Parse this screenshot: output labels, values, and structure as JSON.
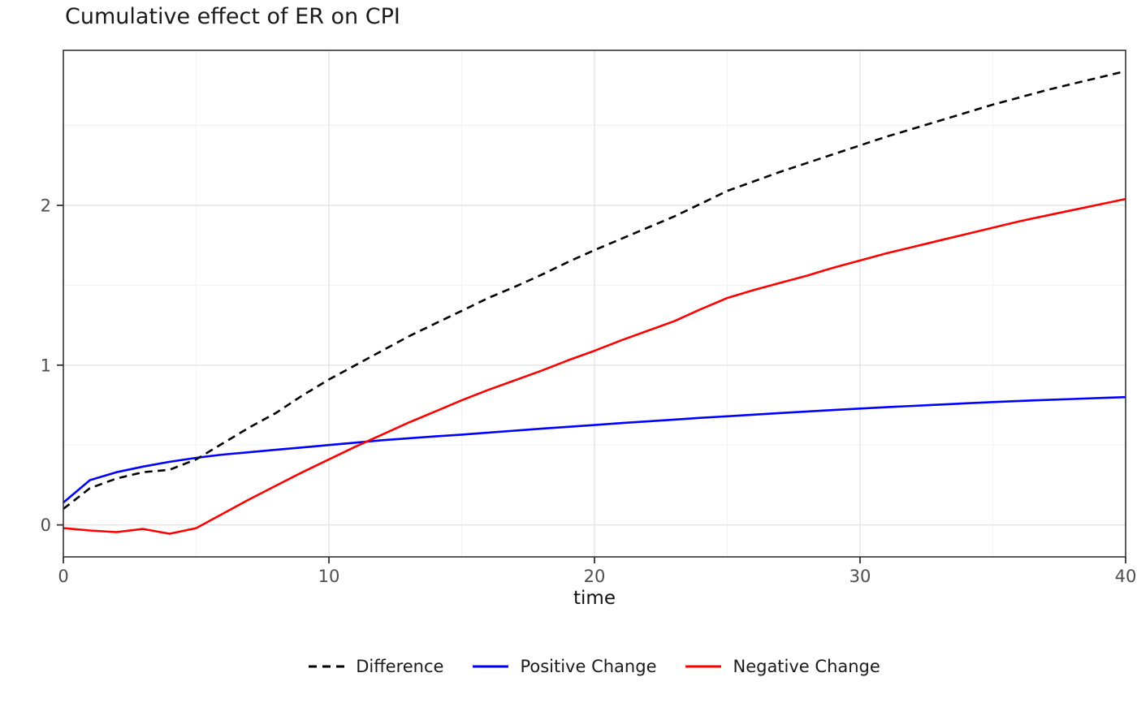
{
  "chart_data": {
    "type": "line",
    "title": "Cumulative effect of ER on CPI",
    "xlabel": "time",
    "ylabel": "",
    "xlim": [
      0,
      40
    ],
    "ylim": [
      -0.2,
      2.97
    ],
    "xticks": [
      0,
      10,
      20,
      30,
      40
    ],
    "yticks": [
      0,
      1,
      2
    ],
    "xminor": [
      5,
      15,
      25,
      35
    ],
    "yminor": [
      0.5,
      1.5,
      2.5
    ],
    "grid": "major+minor",
    "legend_position": "bottom",
    "x": [
      0,
      1,
      2,
      3,
      4,
      5,
      6,
      7,
      8,
      9,
      10,
      11,
      12,
      13,
      14,
      15,
      16,
      17,
      18,
      19,
      20,
      21,
      22,
      23,
      24,
      25,
      26,
      27,
      28,
      29,
      30,
      31,
      32,
      33,
      34,
      35,
      36,
      37,
      38,
      39,
      40
    ],
    "series": [
      {
        "name": "Difference",
        "color": "#000000",
        "dash": "dashed",
        "values": [
          0.1,
          0.23,
          0.29,
          0.33,
          0.345,
          0.41,
          0.51,
          0.61,
          0.7,
          0.81,
          0.91,
          1.0,
          1.09,
          1.18,
          1.26,
          1.34,
          1.42,
          1.49,
          1.565,
          1.645,
          1.72,
          1.79,
          1.86,
          1.93,
          2.01,
          2.09,
          2.15,
          2.21,
          2.265,
          2.32,
          2.375,
          2.43,
          2.48,
          2.53,
          2.58,
          2.63,
          2.675,
          2.72,
          2.76,
          2.8,
          2.84
        ]
      },
      {
        "name": "Positive Change",
        "color": "#0000ff",
        "dash": "solid",
        "values": [
          0.14,
          0.28,
          0.33,
          0.365,
          0.395,
          0.42,
          0.44,
          0.455,
          0.47,
          0.485,
          0.5,
          0.515,
          0.53,
          0.542,
          0.554,
          0.565,
          0.578,
          0.59,
          0.602,
          0.614,
          0.625,
          0.637,
          0.648,
          0.659,
          0.67,
          0.68,
          0.69,
          0.7,
          0.71,
          0.719,
          0.728,
          0.737,
          0.745,
          0.753,
          0.761,
          0.769,
          0.776,
          0.782,
          0.788,
          0.794,
          0.8
        ]
      },
      {
        "name": "Negative Change",
        "color": "#ff0000",
        "dash": "solid",
        "values": [
          -0.02,
          -0.035,
          -0.045,
          -0.025,
          -0.055,
          -0.02,
          0.07,
          0.16,
          0.245,
          0.33,
          0.41,
          0.49,
          0.565,
          0.64,
          0.71,
          0.78,
          0.845,
          0.905,
          0.965,
          1.03,
          1.09,
          1.155,
          1.215,
          1.275,
          1.35,
          1.42,
          1.47,
          1.515,
          1.56,
          1.61,
          1.655,
          1.7,
          1.74,
          1.78,
          1.82,
          1.86,
          1.9,
          1.935,
          1.97,
          2.005,
          2.04
        ]
      }
    ],
    "colors": {
      "grid_major": "#e4e4e4",
      "grid_minor": "#f2f2f2",
      "panel_border": "#333333",
      "tick": "#333333",
      "tick_label": "#4d4d4d",
      "title": "#1a1a1a",
      "axis_label": "#111111",
      "legend_label": "#1a1a1a"
    }
  }
}
